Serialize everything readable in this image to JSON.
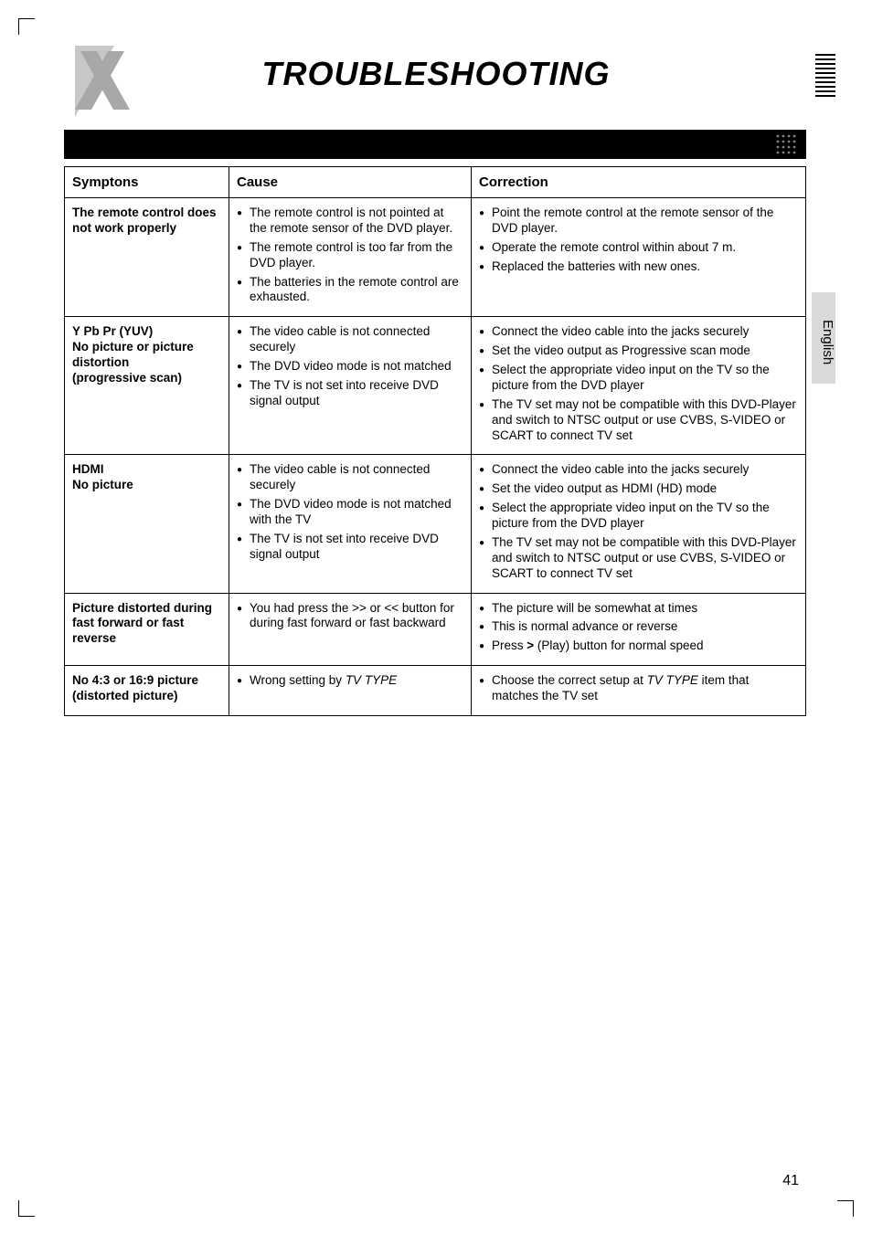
{
  "heading": "TROUBLESHOOTING",
  "side_tab": "English",
  "page_number": "41",
  "table": {
    "headers": {
      "c1": "Symptons",
      "c2": "Cause",
      "c3": "Correction"
    },
    "rows": [
      {
        "sym": "The remote control does not work properly",
        "cause": [
          "The remote control is not pointed at the remote sensor of the DVD player.",
          "The remote control is too far from the DVD player.",
          "The batteries in the remote control are exhausted."
        ],
        "corr": [
          "Point the remote control at the remote sensor of the DVD player.",
          "Operate the remote control within about 7 m.",
          "Replaced the batteries with new ones."
        ]
      },
      {
        "sym": "Y Pb Pr (YUV)\nNo picture or picture distortion\n(progressive scan)",
        "cause": [
          "The video cable is not connected securely",
          "The DVD video mode is not matched",
          "The TV is not set into receive DVD signal output"
        ],
        "corr": [
          "Connect the video cable into the jacks securely",
          "Set the video output as Progressive scan mode",
          "Select the appropriate video input on the TV so the picture from the DVD player",
          "The TV set may not be compatible with this DVD-Player and switch to NTSC output or use CVBS, S-VIDEO or SCART to connect TV set"
        ]
      },
      {
        "sym": "HDMI\nNo picture",
        "cause": [
          "The video cable is not connected securely",
          "The DVD video mode is not matched with the TV",
          "The TV is not set into receive DVD signal output"
        ],
        "corr": [
          "Connect the video cable into the jacks securely",
          "Set the video output as HDMI (HD) mode",
          "Select the appropriate video input on the TV so the picture from the DVD player",
          "The TV set may not be compatible with this DVD-Player and switch to NTSC output or use CVBS, S-VIDEO or SCART to connect TV set"
        ]
      },
      {
        "sym": "Picture distorted during fast forward or fast reverse",
        "cause": [
          "You had press the >> or << button for during fast forward or fast backward"
        ],
        "corr": [
          "The picture will be somewhat at times",
          "This is normal advance or reverse",
          "Press > (Play) button for normal speed"
        ]
      },
      {
        "sym": "No 4:3 or 16:9 picture (distorted picture)",
        "cause_html": "Wrong setting by <i>TV TYPE</i>",
        "corr_html": "Choose the correct setup at <i>TV TYPE</i> item that matches the TV set"
      }
    ]
  }
}
